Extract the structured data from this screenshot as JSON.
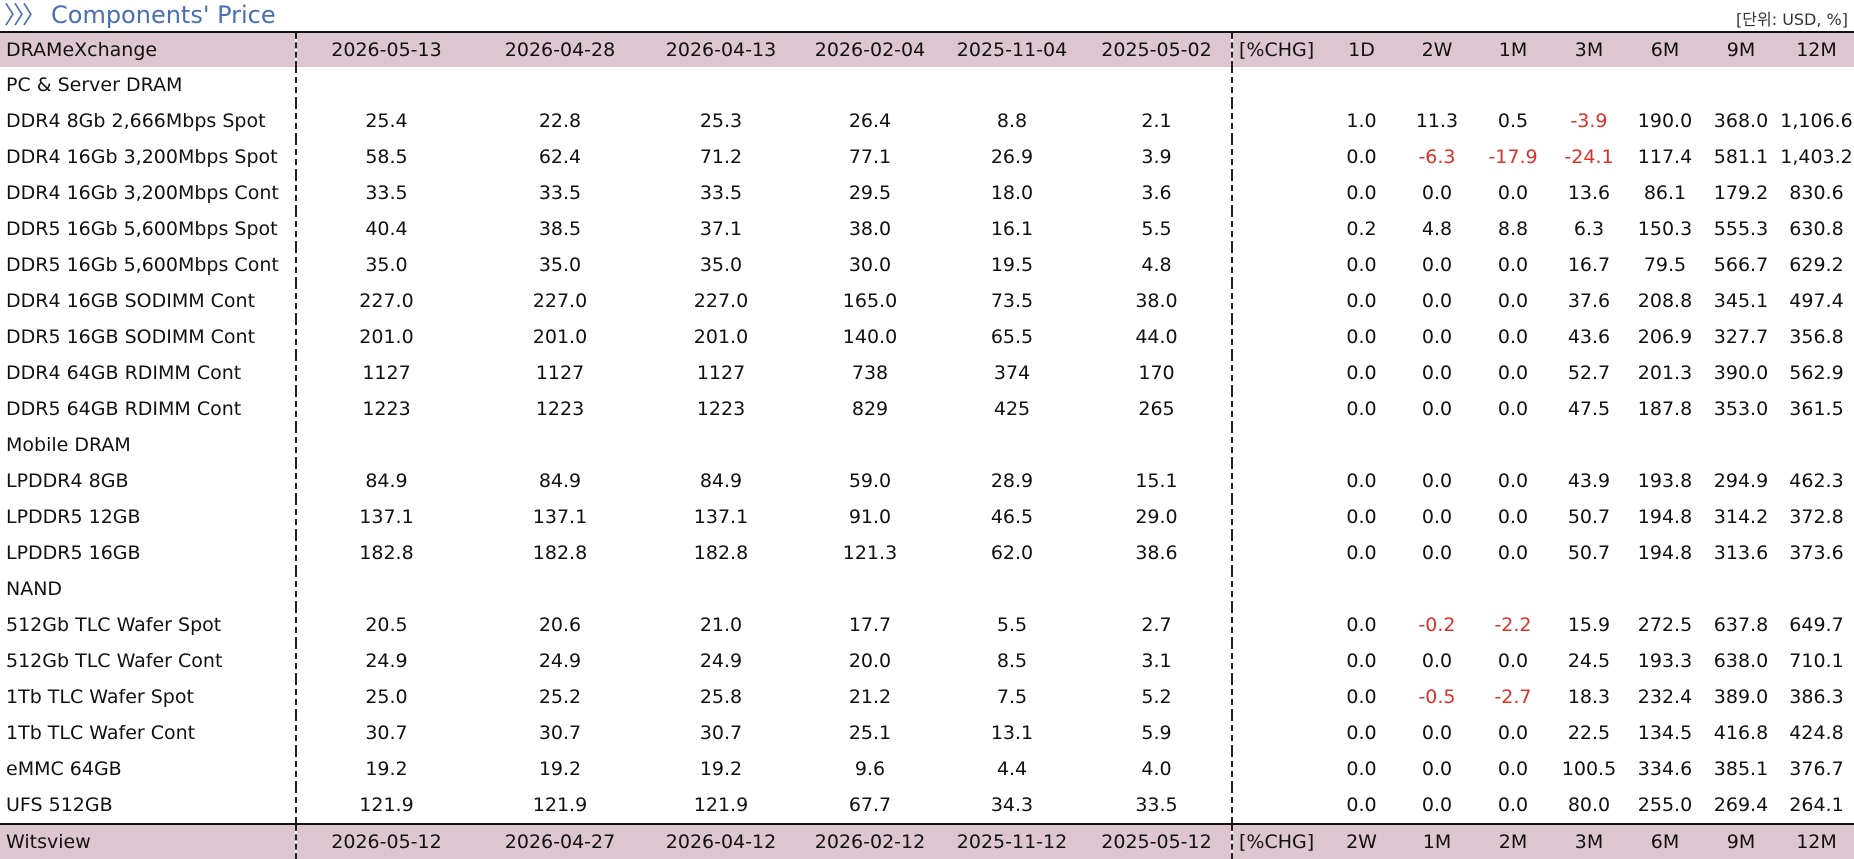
{
  "title": "Components' Price",
  "unit": "[단위: USD, %]",
  "header": {
    "source": "DRAMeXchange",
    "dates": [
      "2026-05-13",
      "2026-04-28",
      "2026-04-13",
      "2026-02-04",
      "2025-11-04",
      "2025-05-02"
    ],
    "chg_label": "[%CHG]",
    "periods": [
      "1D",
      "2W",
      "1M",
      "3M",
      "6M",
      "9M",
      "12M"
    ]
  },
  "sections": [
    {
      "name": "PC & Server DRAM",
      "rows": [
        {
          "item": "DDR4 8Gb 2,666Mbps Spot",
          "prices": [
            "25.4",
            "22.8",
            "25.3",
            "26.4",
            "8.8",
            "2.1"
          ],
          "changes": [
            "1.0",
            "11.3",
            "0.5",
            "-3.9",
            "190.0",
            "368.0",
            "1,106.6"
          ]
        },
        {
          "item": "DDR4 16Gb 3,200Mbps Spot",
          "prices": [
            "58.5",
            "62.4",
            "71.2",
            "77.1",
            "26.9",
            "3.9"
          ],
          "changes": [
            "0.0",
            "-6.3",
            "-17.9",
            "-24.1",
            "117.4",
            "581.1",
            "1,403.2"
          ]
        },
        {
          "item": "DDR4 16Gb 3,200Mbps Cont",
          "prices": [
            "33.5",
            "33.5",
            "33.5",
            "29.5",
            "18.0",
            "3.6"
          ],
          "changes": [
            "0.0",
            "0.0",
            "0.0",
            "13.6",
            "86.1",
            "179.2",
            "830.6"
          ]
        },
        {
          "item": "DDR5 16Gb 5,600Mbps Spot",
          "prices": [
            "40.4",
            "38.5",
            "37.1",
            "38.0",
            "16.1",
            "5.5"
          ],
          "changes": [
            "0.2",
            "4.8",
            "8.8",
            "6.3",
            "150.3",
            "555.3",
            "630.8"
          ]
        },
        {
          "item": "DDR5 16Gb 5,600Mbps Cont",
          "prices": [
            "35.0",
            "35.0",
            "35.0",
            "30.0",
            "19.5",
            "4.8"
          ],
          "changes": [
            "0.0",
            "0.0",
            "0.0",
            "16.7",
            "79.5",
            "566.7",
            "629.2"
          ]
        },
        {
          "item": "DDR4 16GB SODIMM Cont",
          "prices": [
            "227.0",
            "227.0",
            "227.0",
            "165.0",
            "73.5",
            "38.0"
          ],
          "changes": [
            "0.0",
            "0.0",
            "0.0",
            "37.6",
            "208.8",
            "345.1",
            "497.4"
          ]
        },
        {
          "item": "DDR5 16GB SODIMM Cont",
          "prices": [
            "201.0",
            "201.0",
            "201.0",
            "140.0",
            "65.5",
            "44.0"
          ],
          "changes": [
            "0.0",
            "0.0",
            "0.0",
            "43.6",
            "206.9",
            "327.7",
            "356.8"
          ]
        },
        {
          "item": "DDR4 64GB RDIMM Cont",
          "prices": [
            "1127",
            "1127",
            "1127",
            "738",
            "374",
            "170"
          ],
          "changes": [
            "0.0",
            "0.0",
            "0.0",
            "52.7",
            "201.3",
            "390.0",
            "562.9"
          ]
        },
        {
          "item": "DDR5 64GB RDIMM Cont",
          "prices": [
            "1223",
            "1223",
            "1223",
            "829",
            "425",
            "265"
          ],
          "changes": [
            "0.0",
            "0.0",
            "0.0",
            "47.5",
            "187.8",
            "353.0",
            "361.5"
          ]
        }
      ]
    },
    {
      "name": "Mobile DRAM",
      "rows": [
        {
          "item": "LPDDR4 8GB",
          "prices": [
            "84.9",
            "84.9",
            "84.9",
            "59.0",
            "28.9",
            "15.1"
          ],
          "changes": [
            "0.0",
            "0.0",
            "0.0",
            "43.9",
            "193.8",
            "294.9",
            "462.3"
          ]
        },
        {
          "item": "LPDDR5 12GB",
          "prices": [
            "137.1",
            "137.1",
            "137.1",
            "91.0",
            "46.5",
            "29.0"
          ],
          "changes": [
            "0.0",
            "0.0",
            "0.0",
            "50.7",
            "194.8",
            "314.2",
            "372.8"
          ]
        },
        {
          "item": "LPDDR5 16GB",
          "prices": [
            "182.8",
            "182.8",
            "182.8",
            "121.3",
            "62.0",
            "38.6"
          ],
          "changes": [
            "0.0",
            "0.0",
            "0.0",
            "50.7",
            "194.8",
            "313.6",
            "373.6"
          ]
        }
      ]
    },
    {
      "name": "NAND",
      "rows": [
        {
          "item": "512Gb TLC Wafer Spot",
          "prices": [
            "20.5",
            "20.6",
            "21.0",
            "17.7",
            "5.5",
            "2.7"
          ],
          "changes": [
            "0.0",
            "-0.2",
            "-2.2",
            "15.9",
            "272.5",
            "637.8",
            "649.7"
          ]
        },
        {
          "item": "512Gb TLC Wafer Cont",
          "prices": [
            "24.9",
            "24.9",
            "24.9",
            "20.0",
            "8.5",
            "3.1"
          ],
          "changes": [
            "0.0",
            "0.0",
            "0.0",
            "24.5",
            "193.3",
            "638.0",
            "710.1"
          ]
        },
        {
          "item": "1Tb TLC Wafer Spot",
          "prices": [
            "25.0",
            "25.2",
            "25.8",
            "21.2",
            "7.5",
            "5.2"
          ],
          "changes": [
            "0.0",
            "-0.5",
            "-2.7",
            "18.3",
            "232.4",
            "389.0",
            "386.3"
          ]
        },
        {
          "item": "1Tb TLC Wafer Cont",
          "prices": [
            "30.7",
            "30.7",
            "30.7",
            "25.1",
            "13.1",
            "5.9"
          ],
          "changes": [
            "0.0",
            "0.0",
            "0.0",
            "22.5",
            "134.5",
            "416.8",
            "424.8"
          ]
        },
        {
          "item": "eMMC 64GB",
          "prices": [
            "19.2",
            "19.2",
            "19.2",
            "9.6",
            "4.4",
            "4.0"
          ],
          "changes": [
            "0.0",
            "0.0",
            "0.0",
            "100.5",
            "334.6",
            "385.1",
            "376.7"
          ]
        },
        {
          "item": "UFS 512GB",
          "prices": [
            "121.9",
            "121.9",
            "121.9",
            "67.7",
            "34.3",
            "33.5"
          ],
          "changes": [
            "0.0",
            "0.0",
            "0.0",
            "80.0",
            "255.0",
            "269.4",
            "264.1"
          ]
        }
      ]
    }
  ],
  "footer": {
    "source": "Witsview",
    "dates": [
      "2026-05-12",
      "2026-04-27",
      "2026-04-12",
      "2026-02-12",
      "2025-11-12",
      "2025-05-12"
    ],
    "chg_label": "[%CHG]",
    "periods": [
      "2W",
      "1M",
      "2M",
      "3M",
      "6M",
      "9M",
      "12M"
    ]
  }
}
